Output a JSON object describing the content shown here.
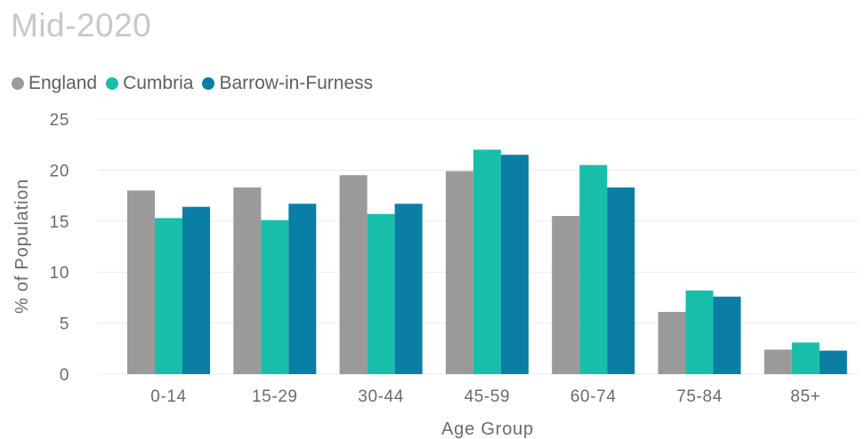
{
  "chart_data": {
    "type": "bar",
    "title": "Mid-2020",
    "xlabel": "Age Group",
    "ylabel": "% of Population",
    "ylim": [
      0,
      25
    ],
    "yticks": [
      0,
      5,
      10,
      15,
      20,
      25
    ],
    "grid": true,
    "legend_position": "top-left",
    "categories": [
      "0-14",
      "15-29",
      "30-44",
      "45-59",
      "60-74",
      "75-84",
      "85+"
    ],
    "series": [
      {
        "name": "England",
        "color": "#9a9a9a",
        "values": [
          18.0,
          18.3,
          19.5,
          19.9,
          15.5,
          6.1,
          2.4
        ]
      },
      {
        "name": "Cumbria",
        "color": "#17bfaa",
        "values": [
          15.3,
          15.1,
          15.7,
          22.0,
          20.5,
          8.2,
          3.1
        ]
      },
      {
        "name": "Barrow-in-Furness",
        "color": "#0b7ea6",
        "values": [
          16.4,
          16.7,
          16.7,
          21.5,
          18.3,
          7.6,
          2.3
        ]
      }
    ]
  }
}
